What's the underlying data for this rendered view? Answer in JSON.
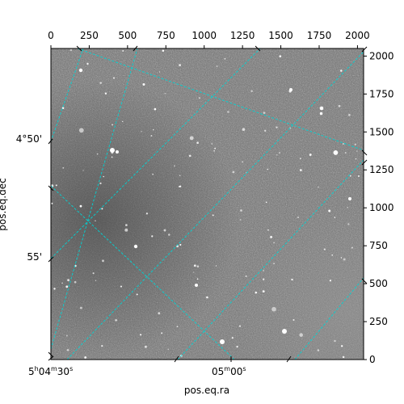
{
  "chart_data": {
    "type": "heatmap",
    "image_description_colormap": "gray",
    "grid": true,
    "grid_color": "#00d5d5",
    "frame_color": "#000000",
    "x_pixel_axis": {
      "position": "top",
      "range": [
        0,
        2040
      ],
      "ticks": [
        0,
        250,
        500,
        750,
        1000,
        1250,
        1500,
        1750,
        2000
      ],
      "tick_labels": [
        "0",
        "250",
        "500",
        "750",
        "1000",
        "1250",
        "1500",
        "1750",
        "2000"
      ]
    },
    "y_pixel_axis": {
      "position": "right",
      "range": [
        0,
        2050
      ],
      "ticks": [
        0,
        250,
        500,
        750,
        1000,
        1250,
        1500,
        1750,
        2000
      ],
      "tick_labels": [
        "0",
        "250",
        "500",
        "750",
        "1000",
        "1250",
        "1500",
        "1750",
        "2000"
      ]
    },
    "ra_axis": {
      "label": "pos.eq.ra",
      "tick_labels": [
        {
          "h": "5",
          "m": "04",
          "s": "30"
        },
        {
          "h": "",
          "m": "05",
          "s": "00"
        }
      ]
    },
    "dec_axis": {
      "label": "pos.eq.dec",
      "tick_labels": [
        "4°50'",
        "55'"
      ]
    }
  }
}
